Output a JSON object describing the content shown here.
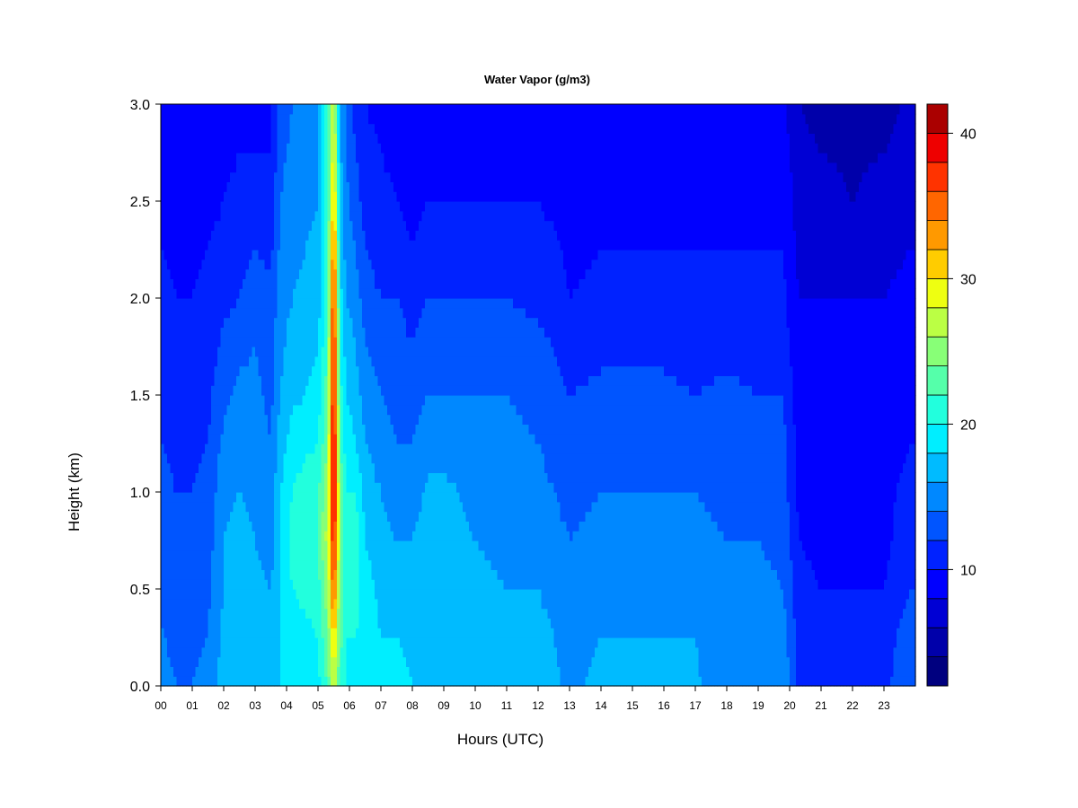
{
  "chart_data": {
    "type": "heatmap",
    "title": "Water Vapor (g/m3)",
    "xlabel": "Hours (UTC)",
    "ylabel": "Height (km)",
    "xlim": [
      0,
      24
    ],
    "ylim": [
      0.0,
      3.0
    ],
    "x_ticks": [
      "00",
      "01",
      "02",
      "03",
      "04",
      "05",
      "06",
      "07",
      "08",
      "09",
      "10",
      "11",
      "12",
      "13",
      "14",
      "15",
      "16",
      "17",
      "18",
      "19",
      "20",
      "21",
      "22",
      "23"
    ],
    "y_ticks": [
      "0.0",
      "0.5",
      "1.0",
      "1.5",
      "2.0",
      "2.5",
      "3.0"
    ],
    "colorbar": {
      "range": [
        2,
        42
      ],
      "levels": [
        2,
        4,
        6,
        8,
        10,
        12,
        14,
        16,
        18,
        20,
        22,
        24,
        26,
        28,
        30,
        32,
        34,
        36,
        38,
        40,
        42
      ],
      "ticks": [
        "10",
        "20",
        "30",
        "40"
      ],
      "colors": [
        "#00007F",
        "#0000AA",
        "#0000D4",
        "#0000FF",
        "#0022FF",
        "#0055FF",
        "#0088FF",
        "#00BBFF",
        "#00EEFF",
        "#22FFDD",
        "#55FFAA",
        "#88FF77",
        "#BBFF44",
        "#EEFF11",
        "#FFCC00",
        "#FF9900",
        "#FF6600",
        "#FF3300",
        "#EE0000",
        "#AA0000"
      ]
    },
    "vertical_profiles_g_m3": {
      "heights_km": [
        0.0,
        0.25,
        0.5,
        0.75,
        1.0,
        1.25,
        1.5,
        1.75,
        2.0,
        2.25,
        2.5,
        2.75,
        3.0
      ],
      "times_h": [
        0.0,
        0.5,
        1.0,
        1.5,
        2.0,
        2.5,
        3.0,
        3.5,
        3.8,
        4.2,
        4.6,
        5.0,
        5.3,
        5.5,
        5.7,
        5.9,
        6.2,
        6.5,
        7.0,
        7.5,
        8.0,
        8.5,
        9.0,
        10.0,
        11.0,
        12.0,
        12.5,
        13.0,
        14.0,
        15.0,
        16.0,
        17.0,
        18.0,
        19.0,
        19.8,
        20.3,
        21.0,
        22.0,
        23.0,
        23.8
      ],
      "values": [
        [
          14.5,
          14.2,
          13.5,
          13.0,
          12.5,
          12.0,
          11.5,
          11.0,
          10.5,
          10.0,
          9.5,
          9.0,
          8.5
        ],
        [
          14.0,
          13.5,
          13.0,
          12.5,
          12.0,
          11.5,
          11.0,
          10.5,
          10.0,
          9.5,
          9.2,
          9.0,
          8.5
        ],
        [
          14.0,
          13.5,
          13.0,
          12.5,
          12.0,
          11.5,
          11.0,
          10.5,
          10.0,
          9.5,
          9.0,
          8.8,
          8.5
        ],
        [
          14.5,
          14.0,
          13.5,
          13.0,
          12.5,
          12.0,
          11.5,
          11.0,
          10.5,
          10.0,
          9.5,
          9.0,
          8.5
        ],
        [
          17.0,
          16.5,
          16.0,
          16.0,
          15.5,
          14.5,
          13.5,
          12.5,
          11.5,
          10.5,
          10.0,
          9.5,
          9.0
        ],
        [
          17.0,
          17.0,
          16.5,
          16.5,
          16.0,
          15.0,
          14.5,
          13.5,
          12.0,
          11.5,
          10.5,
          10.0,
          9.0
        ],
        [
          16.5,
          17.0,
          16.5,
          16.0,
          15.5,
          15.0,
          14.5,
          14.0,
          13.0,
          12.0,
          11.0,
          10.0,
          9.5
        ],
        [
          17.0,
          16.5,
          16.0,
          15.0,
          14.5,
          14.0,
          13.5,
          13.0,
          12.5,
          11.5,
          10.5,
          10.0,
          9.5
        ],
        [
          18.0,
          18.0,
          18.0,
          18.5,
          18.0,
          17.0,
          16.0,
          15.5,
          15.0,
          14.5,
          14.0,
          13.5,
          13.0
        ],
        [
          18.5,
          19.0,
          20.0,
          21.0,
          20.0,
          19.0,
          17.5,
          17.0,
          16.0,
          15.5,
          15.0,
          14.5,
          14.0
        ],
        [
          19.0,
          19.5,
          20.5,
          22.0,
          21.0,
          19.5,
          18.0,
          17.0,
          16.5,
          16.0,
          15.5,
          15.0,
          14.5
        ],
        [
          19.5,
          20.0,
          21.0,
          22.0,
          21.5,
          20.0,
          19.0,
          18.0,
          17.0,
          16.5,
          16.0,
          15.5,
          15.0
        ],
        [
          22.0,
          24.0,
          25.0,
          27.0,
          26.0,
          24.0,
          23.0,
          22.0,
          21.0,
          21.0,
          21.0,
          21.0,
          21.0
        ],
        [
          27.0,
          31.0,
          36.0,
          39.0,
          41.0,
          41.0,
          40.0,
          39.0,
          38.0,
          35.0,
          32.0,
          30.0,
          28.0
        ],
        [
          22.0,
          23.0,
          24.0,
          25.0,
          24.0,
          22.0,
          21.0,
          20.0,
          19.0,
          18.0,
          17.0,
          16.5,
          16.0
        ],
        [
          19.5,
          20.0,
          20.5,
          21.0,
          20.0,
          19.0,
          18.0,
          17.0,
          16.0,
          15.0,
          14.5,
          14.0,
          13.5
        ],
        [
          19.0,
          20.0,
          21.0,
          21.5,
          20.0,
          18.0,
          17.0,
          16.0,
          15.0,
          14.0,
          13.0,
          12.0,
          11.0
        ],
        [
          18.5,
          19.0,
          19.0,
          18.0,
          17.0,
          16.0,
          15.0,
          14.0,
          13.0,
          12.0,
          11.0,
          10.5,
          10.0
        ],
        [
          18.0,
          18.0,
          17.5,
          16.5,
          16.0,
          15.0,
          14.0,
          13.0,
          12.0,
          11.0,
          10.5,
          10.0,
          9.5
        ],
        [
          19.0,
          18.0,
          17.5,
          16.0,
          15.0,
          14.0,
          13.5,
          13.0,
          12.0,
          11.0,
          10.0,
          9.5,
          9.0
        ],
        [
          18.0,
          17.5,
          17.0,
          16.0,
          15.0,
          14.0,
          13.0,
          12.0,
          11.0,
          10.0,
          9.5,
          9.0,
          8.5
        ],
        [
          17.5,
          17.5,
          17.0,
          17.0,
          16.5,
          15.0,
          14.0,
          13.0,
          12.0,
          11.0,
          10.0,
          9.0,
          8.5
        ],
        [
          17.5,
          17.5,
          17.0,
          17.0,
          16.5,
          15.0,
          14.0,
          13.0,
          12.0,
          11.0,
          10.0,
          9.5,
          8.5
        ],
        [
          17.5,
          17.0,
          16.5,
          16.0,
          15.5,
          15.0,
          14.0,
          13.0,
          12.0,
          11.0,
          10.0,
          9.5,
          8.5
        ],
        [
          17.5,
          17.0,
          16.0,
          15.5,
          15.0,
          14.5,
          14.0,
          13.0,
          12.0,
          11.0,
          10.0,
          9.5,
          8.5
        ],
        [
          17.0,
          16.5,
          16.0,
          15.0,
          14.5,
          14.0,
          13.5,
          12.5,
          11.5,
          10.5,
          10.0,
          9.0,
          8.5
        ],
        [
          16.5,
          16.0,
          15.5,
          14.5,
          14.0,
          13.5,
          13.0,
          12.0,
          11.0,
          10.5,
          9.5,
          9.0,
          8.5
        ],
        [
          15.5,
          15.0,
          14.5,
          14.0,
          13.5,
          13.0,
          12.0,
          11.0,
          10.0,
          9.5,
          9.0,
          8.5,
          8.0
        ],
        [
          16.5,
          16.0,
          15.0,
          14.5,
          14.0,
          13.5,
          12.5,
          11.5,
          10.5,
          10.0,
          9.5,
          9.0,
          8.5
        ],
        [
          16.5,
          16.0,
          15.0,
          14.5,
          14.0,
          13.5,
          12.5,
          11.5,
          10.5,
          10.0,
          9.5,
          9.0,
          8.5
        ],
        [
          16.5,
          16.0,
          15.0,
          14.5,
          14.0,
          13.5,
          12.5,
          11.5,
          10.5,
          10.0,
          9.5,
          9.0,
          8.5
        ],
        [
          16.5,
          16.0,
          15.0,
          14.5,
          14.0,
          13.0,
          12.0,
          11.0,
          10.5,
          10.0,
          9.5,
          9.0,
          8.5
        ],
        [
          14.0,
          14.0,
          14.5,
          14.0,
          13.5,
          13.0,
          12.5,
          11.5,
          10.5,
          10.0,
          9.5,
          9.0,
          8.5
        ],
        [
          16.0,
          15.5,
          14.5,
          14.0,
          13.5,
          13.0,
          12.0,
          11.0,
          10.5,
          10.0,
          9.5,
          9.0,
          8.5
        ],
        [
          15.5,
          15.0,
          14.0,
          13.5,
          13.0,
          12.5,
          12.0,
          11.0,
          10.5,
          10.0,
          9.5,
          9.0,
          8.5
        ],
        [
          11.5,
          11.0,
          10.5,
          10.0,
          9.5,
          9.0,
          9.0,
          8.5,
          8.0,
          7.5,
          7.0,
          6.5,
          6.0
        ],
        [
          11.0,
          10.5,
          10.0,
          9.5,
          9.0,
          9.0,
          8.5,
          8.5,
          8.0,
          7.5,
          7.0,
          6.0,
          5.5
        ],
        [
          11.0,
          10.5,
          10.0,
          9.5,
          9.0,
          9.0,
          8.5,
          8.5,
          8.0,
          7.0,
          6.0,
          5.5,
          4.5
        ],
        [
          11.5,
          11.0,
          10.0,
          9.5,
          9.5,
          9.0,
          8.5,
          8.5,
          8.0,
          7.5,
          7.0,
          6.0,
          5.0
        ],
        [
          13.5,
          13.0,
          12.0,
          11.0,
          10.5,
          10.0,
          9.5,
          9.0,
          8.5,
          8.0,
          7.5,
          7.0,
          6.5
        ]
      ]
    },
    "grid": false,
    "legend": "colorbar right"
  }
}
